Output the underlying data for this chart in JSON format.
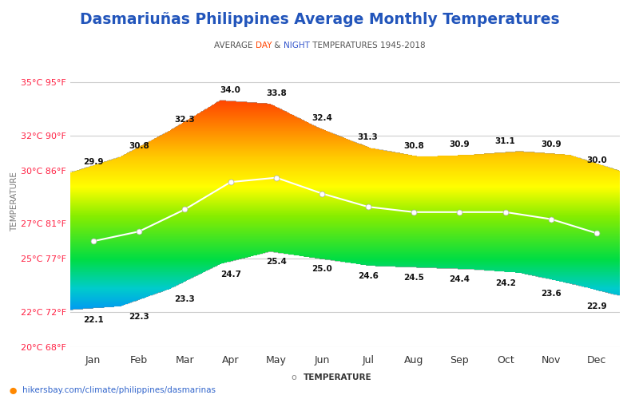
{
  "title": "Dasmariuñas Philippines Average Monthly Temperatures",
  "subtitle_parts": [
    "AVERAGE ",
    "DAY",
    " & ",
    "NIGHT",
    " TEMPERATURES 1945-2018"
  ],
  "subtitle_colors": [
    "#555555",
    "#ff4400",
    "#555555",
    "#3355cc",
    "#555555"
  ],
  "months": [
    "Jan",
    "Feb",
    "Mar",
    "Apr",
    "May",
    "Jun",
    "Jul",
    "Aug",
    "Sep",
    "Oct",
    "Nov",
    "Dec"
  ],
  "day_temps": [
    29.9,
    30.8,
    32.3,
    34.0,
    33.8,
    32.4,
    31.3,
    30.8,
    30.9,
    31.1,
    30.9,
    30.0
  ],
  "night_temps": [
    22.1,
    22.3,
    23.3,
    24.7,
    25.4,
    25.0,
    24.6,
    24.5,
    24.4,
    24.2,
    23.6,
    22.9
  ],
  "avg_temps": [
    26.0,
    26.55,
    27.8,
    29.35,
    29.6,
    28.7,
    27.95,
    27.65,
    27.65,
    27.65,
    27.25,
    26.45
  ],
  "ylim_min": 20.0,
  "ylim_max": 36.5,
  "yticks_celsius": [
    20,
    22,
    25,
    27,
    30,
    32,
    35
  ],
  "ytick_labels": [
    "20°C 68°F",
    "22°C 72°F",
    "25°C 77°F",
    "27°C 81°F",
    "30°C 86°F",
    "32°C 90°F",
    "35°C 95°F"
  ],
  "ylabel": "TEMPERATURE",
  "footer_text": "hikersbay.com/climate/philippines/dasmarinas",
  "bg_color": "#ffffff",
  "grid_color": "#cccccc",
  "title_color": "#2255bb",
  "ytick_color": "#ff2244"
}
